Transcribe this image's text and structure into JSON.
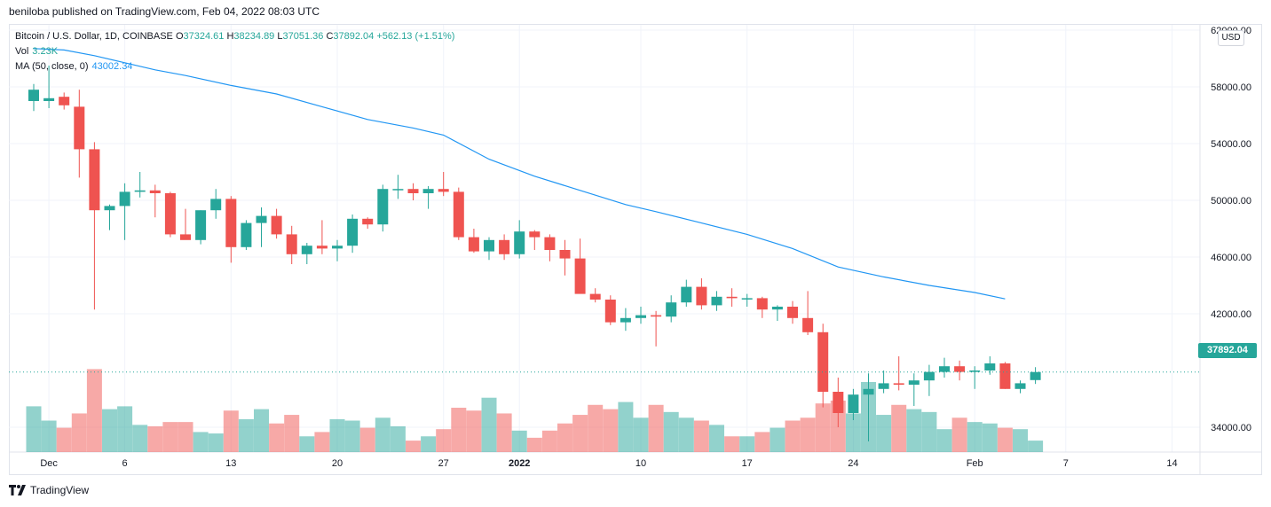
{
  "header": {
    "publisher_text": "beniloba published on TradingView.com, Feb 04, 2022 08:03 UTC"
  },
  "legend": {
    "symbol": "Bitcoin / U.S. Dollar, 1D, COINBASE",
    "o_label": "O",
    "o_value": "37324.61",
    "h_label": "H",
    "h_value": "38234.89",
    "l_label": "L",
    "l_value": "37051.36",
    "c_label": "C",
    "c_value": "37892.04",
    "change": "+562.13 (+1.51%)",
    "vol_label": "Vol",
    "vol_value": "3.23K",
    "ma_label": "MA (50, close, 0)",
    "ma_value": "43002.34"
  },
  "axis": {
    "currency": "USD",
    "current_price": "37892.04",
    "y_ticks": [
      "62000.00",
      "58000.00",
      "54000.00",
      "50000.00",
      "46000.00",
      "42000.00",
      "34000.00"
    ],
    "x_ticks": [
      "Dec",
      "6",
      "13",
      "20",
      "27",
      "2022",
      "10",
      "17",
      "24",
      "Feb",
      "7",
      "14"
    ]
  },
  "footer": {
    "brand": "TradingView"
  },
  "colors": {
    "up": "#26a69a",
    "down": "#ef5350",
    "ma": "#2196f3",
    "grid": "#f0f3fa"
  },
  "chart_data": {
    "type": "candlestick",
    "title": "Bitcoin / U.S. Dollar, 1D, COINBASE",
    "ylim": [
      32000,
      62000
    ],
    "x_ticks": [
      {
        "label": "Dec",
        "index": 1
      },
      {
        "label": "6",
        "index": 6
      },
      {
        "label": "13",
        "index": 13
      },
      {
        "label": "20",
        "index": 20
      },
      {
        "label": "27",
        "index": 27
      },
      {
        "label": "2022",
        "index": 32
      },
      {
        "label": "10",
        "index": 40
      },
      {
        "label": "17",
        "index": 47
      },
      {
        "label": "24",
        "index": 54
      },
      {
        "label": "Feb",
        "index": 62
      },
      {
        "label": "7",
        "index": 68
      },
      {
        "label": "14",
        "index": 75
      }
    ],
    "candles": [
      [
        57000,
        58200,
        56300,
        57800,
        34000
      ],
      [
        57000,
        59500,
        56500,
        57200,
        33000
      ],
      [
        57300,
        57600,
        56400,
        56700,
        32500
      ],
      [
        56600,
        57800,
        51600,
        53600,
        33500
      ],
      [
        53600,
        54100,
        42300,
        49300,
        36600
      ],
      [
        49300,
        49700,
        47900,
        49600,
        33800
      ],
      [
        49600,
        51200,
        47200,
        50600,
        34000
      ],
      [
        50600,
        52000,
        50200,
        50700,
        32700
      ],
      [
        50700,
        51100,
        48800,
        50500,
        32600
      ],
      [
        50500,
        50600,
        47400,
        47600,
        32900
      ],
      [
        47600,
        49400,
        47300,
        47200,
        32900
      ],
      [
        47200,
        49300,
        46900,
        49300,
        32200
      ],
      [
        49300,
        50800,
        48700,
        50100,
        32100
      ],
      [
        50100,
        50300,
        45600,
        46700,
        33700
      ],
      [
        46700,
        48600,
        46500,
        48400,
        33100
      ],
      [
        48400,
        49500,
        46700,
        48900,
        33800
      ],
      [
        48900,
        49400,
        47300,
        47600,
        32800
      ],
      [
        47600,
        48200,
        45500,
        46200,
        33400
      ],
      [
        46200,
        47000,
        45500,
        46800,
        31900
      ],
      [
        46800,
        48600,
        46200,
        46600,
        32200
      ],
      [
        46600,
        47200,
        45700,
        46800,
        33100
      ],
      [
        46800,
        49000,
        46300,
        48700,
        33000
      ],
      [
        48700,
        48800,
        48000,
        48300,
        32500
      ],
      [
        48300,
        51100,
        47800,
        50800,
        33200
      ],
      [
        50800,
        51800,
        50100,
        50800,
        32600
      ],
      [
        50800,
        51200,
        50000,
        50500,
        31600
      ],
      [
        50500,
        51000,
        49400,
        50800,
        31900
      ],
      [
        50800,
        52000,
        50300,
        50600,
        32400
      ],
      [
        50600,
        50900,
        47200,
        47400,
        33900
      ],
      [
        47400,
        48000,
        46300,
        46400,
        33700
      ],
      [
        46400,
        47400,
        45800,
        47200,
        34600
      ],
      [
        47200,
        47600,
        45800,
        46200,
        33500
      ],
      [
        46200,
        48600,
        45900,
        47800,
        32300
      ],
      [
        47800,
        47900,
        46500,
        47400,
        31800
      ],
      [
        47400,
        47600,
        45700,
        46500,
        32300
      ],
      [
        46500,
        47200,
        44700,
        45900,
        32800
      ],
      [
        45900,
        47300,
        43700,
        43400,
        33400
      ],
      [
        43400,
        43800,
        42800,
        43000,
        34100
      ],
      [
        43000,
        43300,
        41200,
        41400,
        33800
      ],
      [
        41400,
        42400,
        40800,
        41700,
        34300
      ],
      [
        41700,
        42500,
        41300,
        41900,
        33200
      ],
      [
        41900,
        42200,
        39700,
        41800,
        34100
      ],
      [
        41800,
        43300,
        41400,
        42800,
        33600
      ],
      [
        42800,
        44400,
        42500,
        43900,
        33200
      ],
      [
        43900,
        44500,
        42300,
        42600,
        33000
      ],
      [
        42600,
        43600,
        42200,
        43200,
        32700
      ],
      [
        43200,
        43800,
        42500,
        43100,
        31900
      ],
      [
        43100,
        43400,
        42500,
        43100,
        31900
      ],
      [
        43100,
        43200,
        41700,
        42300,
        32200
      ],
      [
        42300,
        42600,
        41500,
        42500,
        32500
      ],
      [
        42500,
        42900,
        41300,
        41700,
        33000
      ],
      [
        41700,
        43600,
        40500,
        40700,
        33200
      ],
      [
        40700,
        41300,
        35400,
        36500,
        34200
      ],
      [
        36500,
        37500,
        34000,
        35000,
        34400
      ],
      [
        35000,
        36700,
        34500,
        36300,
        33500
      ],
      [
        36300,
        37800,
        33000,
        36700,
        35700
      ],
      [
        36700,
        38000,
        36400,
        37100,
        33400
      ],
      [
        37100,
        39000,
        36600,
        37000,
        34100
      ],
      [
        37000,
        37800,
        35500,
        37300,
        33800
      ],
      [
        37300,
        38400,
        36200,
        37900,
        33600
      ],
      [
        37900,
        38900,
        37500,
        38300,
        32400
      ],
      [
        38300,
        38700,
        37300,
        37900,
        33200
      ],
      [
        37900,
        38300,
        36700,
        38000,
        32900
      ],
      [
        38000,
        39000,
        37700,
        38500,
        32800
      ],
      [
        38500,
        38600,
        36700,
        36700,
        32500
      ],
      [
        36700,
        37300,
        36400,
        37100,
        32400
      ],
      [
        37324.61,
        38234.89,
        37051.36,
        37892.04,
        31600
      ]
    ],
    "ma50": [
      [
        0,
        60700
      ],
      [
        2,
        60600
      ],
      [
        4,
        60200
      ],
      [
        6,
        59700
      ],
      [
        8,
        59200
      ],
      [
        10,
        58800
      ],
      [
        13,
        58100
      ],
      [
        16,
        57500
      ],
      [
        19,
        56600
      ],
      [
        22,
        55700
      ],
      [
        25,
        55100
      ],
      [
        27,
        54600
      ],
      [
        30,
        52900
      ],
      [
        33,
        51700
      ],
      [
        36,
        50700
      ],
      [
        39,
        49700
      ],
      [
        41,
        49200
      ],
      [
        44,
        48400
      ],
      [
        47,
        47600
      ],
      [
        50,
        46600
      ],
      [
        53,
        45300
      ],
      [
        56,
        44600
      ],
      [
        59,
        44000
      ],
      [
        62,
        43500
      ],
      [
        64,
        43050
      ]
    ],
    "volume_ylim": [
      30800,
      37000
    ],
    "last_price": 37892.04
  }
}
